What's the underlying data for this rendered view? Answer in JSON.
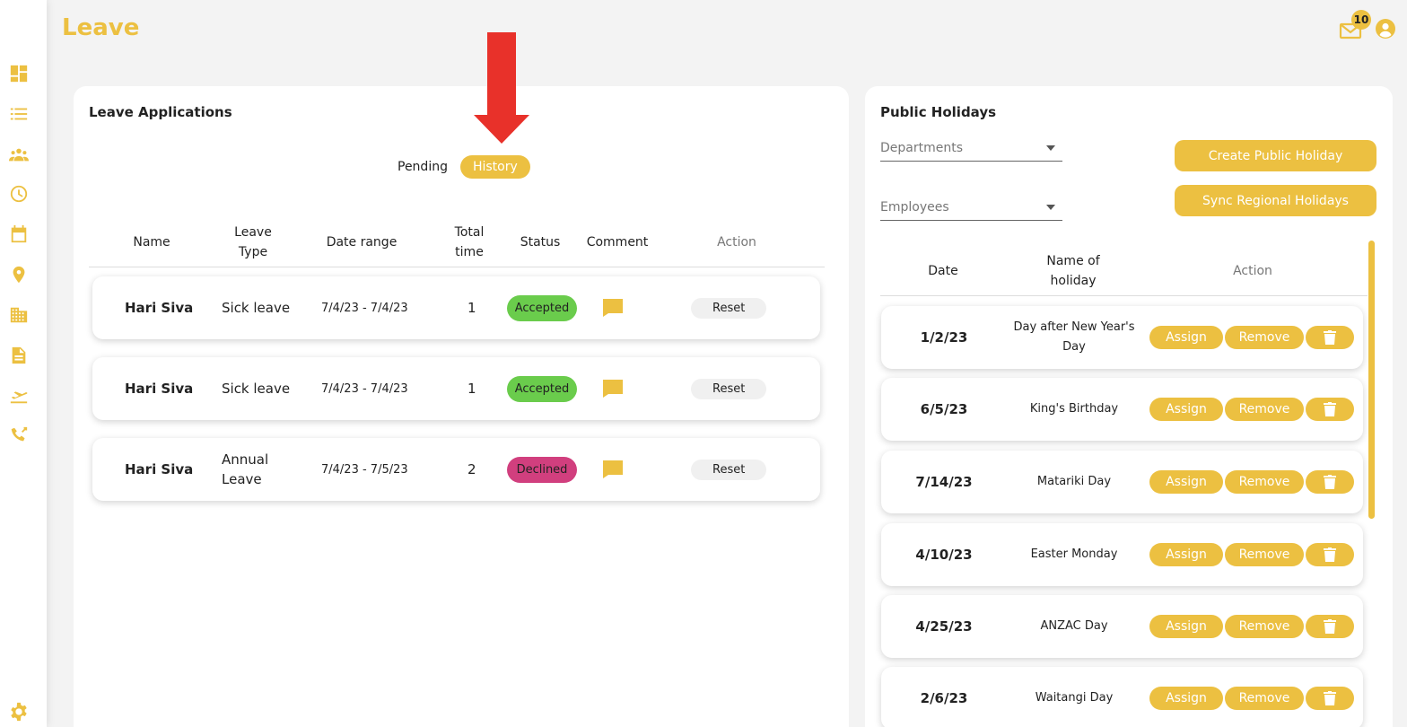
{
  "page": {
    "title": "Leave"
  },
  "topbar": {
    "mail_count": "10"
  },
  "sidebar": {
    "icons": [
      "dashboard-icon",
      "list-icon",
      "team-icon",
      "clock-icon",
      "calendar-icon",
      "location-pin-icon",
      "building-icon",
      "document-icon",
      "plane-icon",
      "phone-forward-icon"
    ],
    "settings_icon": "gear-icon"
  },
  "leave": {
    "title": "Leave Applications",
    "tabs": {
      "pending": "Pending",
      "history": "History",
      "active": "history"
    },
    "columns": {
      "name": "Name",
      "leave_type": "Leave Type",
      "date_range": "Date range",
      "total_time": "Total time",
      "status": "Status",
      "comment": "Comment",
      "action": "Action"
    },
    "rows": [
      {
        "name": "Hari Siva",
        "type": "Sick leave",
        "range": "7/4/23 - 7/4/23",
        "total": "1",
        "status": "Accepted",
        "action": "Reset"
      },
      {
        "name": "Hari Siva",
        "type": "Sick leave",
        "range": "7/4/23 - 7/4/23",
        "total": "1",
        "status": "Accepted",
        "action": "Reset"
      },
      {
        "name": "Hari Siva",
        "type": "Annual Leave",
        "range": "7/4/23 - 7/5/23",
        "total": "2",
        "status": "Declined",
        "action": "Reset"
      }
    ]
  },
  "holidays": {
    "title": "Public Holidays",
    "departments_placeholder": "Departments",
    "employees_placeholder": "Employees",
    "create_button": "Create Public Holiday",
    "sync_button": "Sync Regional Holidays",
    "columns": {
      "date": "Date",
      "name": "Name of holiday",
      "action": "Action"
    },
    "assign_label": "Assign",
    "remove_label": "Remove",
    "rows": [
      {
        "date": "1/2/23",
        "name": "Day after New Year's Day"
      },
      {
        "date": "6/5/23",
        "name": "King's Birthday"
      },
      {
        "date": "7/14/23",
        "name": "Matariki Day"
      },
      {
        "date": "4/10/23",
        "name": "Easter Monday"
      },
      {
        "date": "4/25/23",
        "name": "ANZAC Day"
      },
      {
        "date": "2/6/23",
        "name": "Waitangi Day"
      }
    ]
  },
  "colors": {
    "accent": "#ecc041",
    "accepted": "#6acc4c",
    "declined": "#d13f7e",
    "arrow": "#e8312a"
  }
}
